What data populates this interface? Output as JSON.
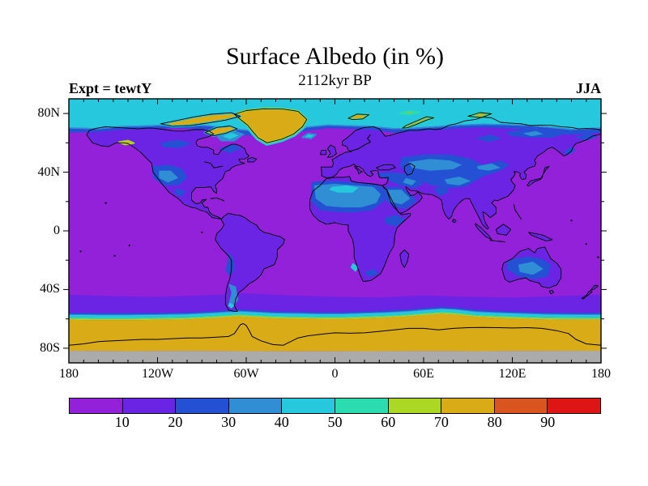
{
  "chart_data": {
    "type": "heatmap",
    "title": "Surface Albedo (in %)",
    "subtitle": "2112kyr BP",
    "annotations": {
      "top_left": "Expt = tewtY",
      "top_right": "JJA"
    },
    "projection": "global longitude-latitude map, 180W-180E, 90S-90N",
    "x_tick_labels": [
      "180",
      "120W",
      "60W",
      "0",
      "60E",
      "120E",
      "180"
    ],
    "x_tick_lons": [
      -180,
      -120,
      -60,
      0,
      60,
      120,
      180
    ],
    "y_tick_labels": [
      "80N",
      "40N",
      "0",
      "40S",
      "80S"
    ],
    "y_tick_lats": [
      80,
      40,
      0,
      -40,
      -80
    ],
    "colorbar": {
      "boundary_labels": [
        "10",
        "20",
        "30",
        "40",
        "50",
        "60",
        "70",
        "80",
        "90"
      ],
      "levels": [
        10,
        20,
        30,
        40,
        50,
        60,
        70,
        80,
        90
      ],
      "segment_colors": [
        "#9321d9",
        "#6b24e3",
        "#2450d4",
        "#2f8ed4",
        "#25c8dc",
        "#2adcb0",
        "#abd725",
        "#d9ab16",
        "#d9541e",
        "#dd1515"
      ],
      "missing_data_color": "#ababab"
    },
    "field_summary": [
      {
        "region": "Oceans between ~60S and ~70N",
        "albedo_percent": "0-10"
      },
      {
        "region": "Most continental land",
        "albedo_percent": "10-20"
      },
      {
        "region": "Sahara and Arabian deserts",
        "albedo_percent": "30-50"
      },
      {
        "region": "Central Asia / Tibet / Gobi deserts",
        "albedo_percent": "20-40"
      },
      {
        "region": "US Southwest and Australian interior",
        "albedo_percent": "20-40"
      },
      {
        "region": "Patagonia strip",
        "albedo_percent": "30-40"
      },
      {
        "region": "Arctic Ocean north of ~70N",
        "albedo_percent": "40-50"
      },
      {
        "region": "Greenland, Canadian Arctic islands, Svalbard, Novaya Zemlya, Severnaya Zemlya",
        "albedo_percent": "70-80"
      },
      {
        "region": "Southern Ocean band 44S-55S",
        "albedo_percent": "10-20"
      },
      {
        "region": "Antarctic sea-ice fringe ~55S-61S",
        "albedo_percent": "20-70 (rapid gradient)"
      },
      {
        "region": "Antarctic pack ice and continent 61S-82S",
        "albedo_percent": "70-80"
      },
      {
        "region": "South polar cap 82S-90S",
        "albedo_percent": "no data (gray)"
      }
    ]
  }
}
